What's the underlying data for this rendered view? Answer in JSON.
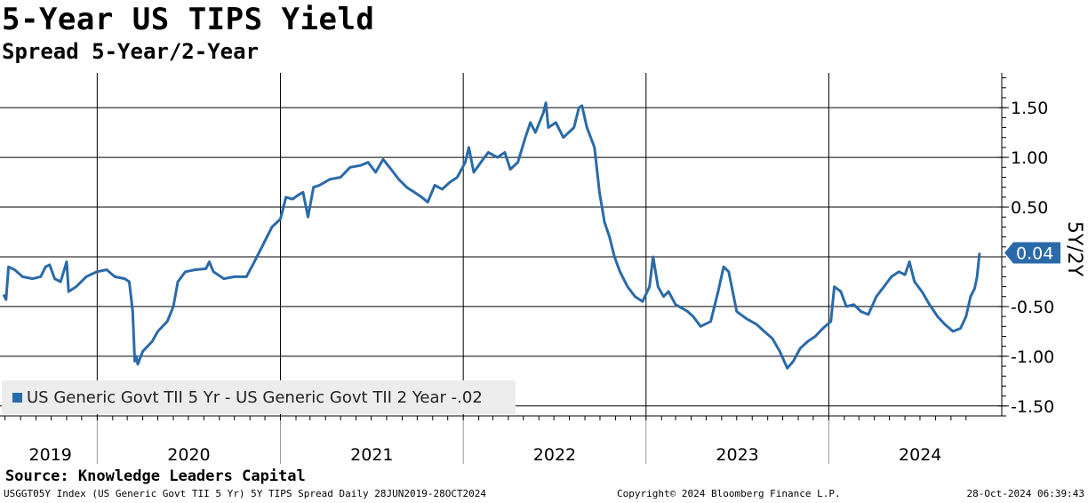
{
  "header": {
    "title": "5-Year US TIPS Yield",
    "subtitle": "Spread 5-Year/2-Year"
  },
  "footer": {
    "source": "Source: Knowledge Leaders Capital",
    "ticker_line": "USGGT05Y Index (US Generic Govt TII 5 Yr) 5Y TIPS Spread  Daily 28JUN2019-28OCT2024",
    "copyright": "Copyright© 2024 Bloomberg Finance L.P.",
    "timestamp": "28-Oct-2024 06:39:43"
  },
  "legend": {
    "label": "US Generic Govt TII 5 Yr - US Generic Govt TII 2 Year -.02"
  },
  "last_value_label": "0.04",
  "colors": {
    "series": "#2a6aa9",
    "grid": "#000000",
    "legend_bg": "#ececec"
  },
  "chart_data": {
    "type": "line",
    "title": "5-Year US TIPS Yield",
    "subtitle": "Spread 5-Year/2-Year",
    "ylabel": "5Y/2Y",
    "ylim": [
      -1.6,
      1.85
    ],
    "yticks": [
      1.5,
      1.0,
      0.5,
      -0.5,
      -1.0,
      -1.5
    ],
    "ytick_labels": [
      "1.50",
      "1.00",
      "0.50",
      "-0.50",
      "-1.00",
      "-1.50"
    ],
    "xlim": [
      "2019-06-28",
      "2024-10-28"
    ],
    "year_labels": [
      "2019",
      "2020",
      "2021",
      "2022",
      "2023",
      "2024"
    ],
    "grid": true,
    "legend_position": "bottom-left",
    "series": [
      {
        "name": "US Generic Govt TII 5 Yr - US Generic Govt TII 2 Year -.02",
        "points": [
          [
            "2019-06-28",
            -0.38
          ],
          [
            "2019-07-03",
            -0.43
          ],
          [
            "2019-07-08",
            -0.1
          ],
          [
            "2019-07-20",
            -0.13
          ],
          [
            "2019-08-05",
            -0.2
          ],
          [
            "2019-08-25",
            -0.22
          ],
          [
            "2019-09-10",
            -0.2
          ],
          [
            "2019-09-20",
            -0.1
          ],
          [
            "2019-09-28",
            -0.08
          ],
          [
            "2019-10-08",
            -0.22
          ],
          [
            "2019-10-20",
            -0.25
          ],
          [
            "2019-11-01",
            -0.05
          ],
          [
            "2019-11-05",
            -0.35
          ],
          [
            "2019-11-20",
            -0.3
          ],
          [
            "2019-12-10",
            -0.2
          ],
          [
            "2019-12-31",
            -0.15
          ],
          [
            "2020-01-20",
            -0.13
          ],
          [
            "2020-02-05",
            -0.2
          ],
          [
            "2020-02-25",
            -0.22
          ],
          [
            "2020-03-05",
            -0.25
          ],
          [
            "2020-03-12",
            -0.55
          ],
          [
            "2020-03-16",
            -1.05
          ],
          [
            "2020-03-19",
            -1.0
          ],
          [
            "2020-03-22",
            -1.08
          ],
          [
            "2020-04-01",
            -0.95
          ],
          [
            "2020-04-20",
            -0.85
          ],
          [
            "2020-05-01",
            -0.75
          ],
          [
            "2020-05-20",
            -0.65
          ],
          [
            "2020-06-01",
            -0.5
          ],
          [
            "2020-06-10",
            -0.25
          ],
          [
            "2020-06-25",
            -0.15
          ],
          [
            "2020-07-15",
            -0.13
          ],
          [
            "2020-08-05",
            -0.12
          ],
          [
            "2020-08-12",
            -0.05
          ],
          [
            "2020-08-20",
            -0.15
          ],
          [
            "2020-09-10",
            -0.22
          ],
          [
            "2020-10-01",
            -0.2
          ],
          [
            "2020-10-25",
            -0.2
          ],
          [
            "2020-11-10",
            -0.05
          ],
          [
            "2020-11-30",
            0.15
          ],
          [
            "2020-12-15",
            0.3
          ],
          [
            "2021-01-01",
            0.38
          ],
          [
            "2021-01-12",
            0.6
          ],
          [
            "2021-01-25",
            0.58
          ],
          [
            "2021-02-05",
            0.62
          ],
          [
            "2021-02-15",
            0.65
          ],
          [
            "2021-02-25",
            0.4
          ],
          [
            "2021-03-08",
            0.7
          ],
          [
            "2021-03-20",
            0.72
          ],
          [
            "2021-04-10",
            0.78
          ],
          [
            "2021-05-01",
            0.8
          ],
          [
            "2021-05-20",
            0.9
          ],
          [
            "2021-06-10",
            0.92
          ],
          [
            "2021-06-25",
            0.95
          ],
          [
            "2021-07-10",
            0.85
          ],
          [
            "2021-07-25",
            0.98
          ],
          [
            "2021-08-10",
            0.88
          ],
          [
            "2021-08-25",
            0.78
          ],
          [
            "2021-09-10",
            0.7
          ],
          [
            "2021-09-25",
            0.65
          ],
          [
            "2021-10-10",
            0.6
          ],
          [
            "2021-10-22",
            0.55
          ],
          [
            "2021-11-05",
            0.72
          ],
          [
            "2021-11-20",
            0.68
          ],
          [
            "2021-12-05",
            0.75
          ],
          [
            "2021-12-20",
            0.8
          ],
          [
            "2022-01-05",
            0.95
          ],
          [
            "2022-01-12",
            1.1
          ],
          [
            "2022-01-22",
            0.85
          ],
          [
            "2022-02-05",
            0.95
          ],
          [
            "2022-02-20",
            1.05
          ],
          [
            "2022-03-10",
            1.0
          ],
          [
            "2022-03-25",
            1.05
          ],
          [
            "2022-04-05",
            0.88
          ],
          [
            "2022-04-20",
            0.95
          ],
          [
            "2022-05-05",
            1.2
          ],
          [
            "2022-05-15",
            1.35
          ],
          [
            "2022-05-25",
            1.25
          ],
          [
            "2022-06-10",
            1.45
          ],
          [
            "2022-06-15",
            1.55
          ],
          [
            "2022-06-20",
            1.3
          ],
          [
            "2022-07-05",
            1.35
          ],
          [
            "2022-07-20",
            1.2
          ],
          [
            "2022-08-10",
            1.3
          ],
          [
            "2022-08-20",
            1.5
          ],
          [
            "2022-08-26",
            1.52
          ],
          [
            "2022-09-05",
            1.3
          ],
          [
            "2022-09-20",
            1.1
          ],
          [
            "2022-09-30",
            0.65
          ],
          [
            "2022-10-10",
            0.35
          ],
          [
            "2022-10-20",
            0.2
          ],
          [
            "2022-10-30",
            0.0
          ],
          [
            "2022-11-10",
            -0.15
          ],
          [
            "2022-11-25",
            -0.3
          ],
          [
            "2022-12-10",
            -0.4
          ],
          [
            "2022-12-25",
            -0.45
          ],
          [
            "2023-01-08",
            -0.3
          ],
          [
            "2023-01-15",
            0.0
          ],
          [
            "2023-01-25",
            -0.3
          ],
          [
            "2023-02-05",
            -0.4
          ],
          [
            "2023-02-15",
            -0.35
          ],
          [
            "2023-03-01",
            -0.48
          ],
          [
            "2023-03-15",
            -0.52
          ],
          [
            "2023-03-25",
            -0.55
          ],
          [
            "2023-04-05",
            -0.6
          ],
          [
            "2023-04-20",
            -0.7
          ],
          [
            "2023-05-10",
            -0.65
          ],
          [
            "2023-05-25",
            -0.35
          ],
          [
            "2023-06-05",
            -0.1
          ],
          [
            "2023-06-15",
            -0.15
          ],
          [
            "2023-07-01",
            -0.55
          ],
          [
            "2023-07-20",
            -0.62
          ],
          [
            "2023-08-10",
            -0.68
          ],
          [
            "2023-08-25",
            -0.75
          ],
          [
            "2023-09-10",
            -0.82
          ],
          [
            "2023-09-25",
            -0.95
          ],
          [
            "2023-10-10",
            -1.12
          ],
          [
            "2023-10-22",
            -1.05
          ],
          [
            "2023-11-05",
            -0.92
          ],
          [
            "2023-11-20",
            -0.85
          ],
          [
            "2023-12-05",
            -0.8
          ],
          [
            "2023-12-20",
            -0.72
          ],
          [
            "2024-01-05",
            -0.65
          ],
          [
            "2024-01-12",
            -0.3
          ],
          [
            "2024-01-25",
            -0.35
          ],
          [
            "2024-02-05",
            -0.5
          ],
          [
            "2024-02-20",
            -0.48
          ],
          [
            "2024-03-05",
            -0.55
          ],
          [
            "2024-03-20",
            -0.58
          ],
          [
            "2024-04-05",
            -0.4
          ],
          [
            "2024-04-20",
            -0.3
          ],
          [
            "2024-05-05",
            -0.2
          ],
          [
            "2024-05-20",
            -0.15
          ],
          [
            "2024-06-01",
            -0.18
          ],
          [
            "2024-06-10",
            -0.05
          ],
          [
            "2024-06-20",
            -0.25
          ],
          [
            "2024-07-05",
            -0.35
          ],
          [
            "2024-07-20",
            -0.48
          ],
          [
            "2024-08-05",
            -0.6
          ],
          [
            "2024-08-20",
            -0.68
          ],
          [
            "2024-09-05",
            -0.75
          ],
          [
            "2024-09-20",
            -0.72
          ],
          [
            "2024-10-01",
            -0.6
          ],
          [
            "2024-10-10",
            -0.4
          ],
          [
            "2024-10-18",
            -0.32
          ],
          [
            "2024-10-23",
            -0.2
          ],
          [
            "2024-10-28",
            0.04
          ]
        ]
      }
    ]
  }
}
